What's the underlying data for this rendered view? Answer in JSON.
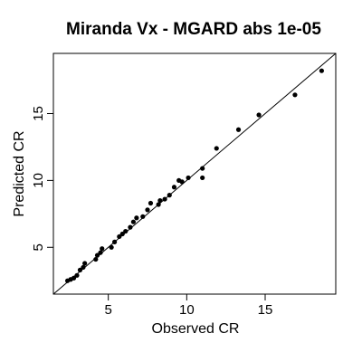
{
  "chart_data": {
    "type": "scatter",
    "title": "Miranda Vx  -  MGARD abs 1e-05",
    "xlabel": "Observed CR",
    "ylabel": "Predicted CR",
    "xlim": [
      1.5,
      19.5
    ],
    "ylim": [
      1.5,
      19.5
    ],
    "xticks": [
      5,
      10,
      15
    ],
    "yticks": [
      5,
      10,
      15
    ],
    "grid": false,
    "reference_line": "y = x",
    "points": [
      {
        "x": 2.4,
        "y": 2.5
      },
      {
        "x": 2.6,
        "y": 2.6
      },
      {
        "x": 2.8,
        "y": 2.7
      },
      {
        "x": 3.0,
        "y": 2.9
      },
      {
        "x": 3.2,
        "y": 3.3
      },
      {
        "x": 3.4,
        "y": 3.5
      },
      {
        "x": 3.5,
        "y": 3.8
      },
      {
        "x": 4.2,
        "y": 4.1
      },
      {
        "x": 4.3,
        "y": 4.4
      },
      {
        "x": 4.5,
        "y": 4.6
      },
      {
        "x": 4.6,
        "y": 4.9
      },
      {
        "x": 5.2,
        "y": 5.0
      },
      {
        "x": 5.4,
        "y": 5.4
      },
      {
        "x": 5.7,
        "y": 5.8
      },
      {
        "x": 5.9,
        "y": 6.0
      },
      {
        "x": 6.1,
        "y": 6.2
      },
      {
        "x": 6.4,
        "y": 6.5
      },
      {
        "x": 6.6,
        "y": 6.9
      },
      {
        "x": 6.8,
        "y": 7.2
      },
      {
        "x": 7.2,
        "y": 7.3
      },
      {
        "x": 7.5,
        "y": 7.8
      },
      {
        "x": 7.7,
        "y": 8.3
      },
      {
        "x": 8.2,
        "y": 8.2
      },
      {
        "x": 8.3,
        "y": 8.5
      },
      {
        "x": 8.6,
        "y": 8.6
      },
      {
        "x": 8.9,
        "y": 8.9
      },
      {
        "x": 9.2,
        "y": 9.5
      },
      {
        "x": 9.5,
        "y": 10.0
      },
      {
        "x": 9.7,
        "y": 9.9
      },
      {
        "x": 10.1,
        "y": 10.2
      },
      {
        "x": 11.0,
        "y": 10.2
      },
      {
        "x": 11.0,
        "y": 10.9
      },
      {
        "x": 11.9,
        "y": 12.4
      },
      {
        "x": 13.3,
        "y": 13.8
      },
      {
        "x": 14.6,
        "y": 14.9
      },
      {
        "x": 16.9,
        "y": 16.4
      },
      {
        "x": 18.6,
        "y": 18.2
      }
    ]
  }
}
